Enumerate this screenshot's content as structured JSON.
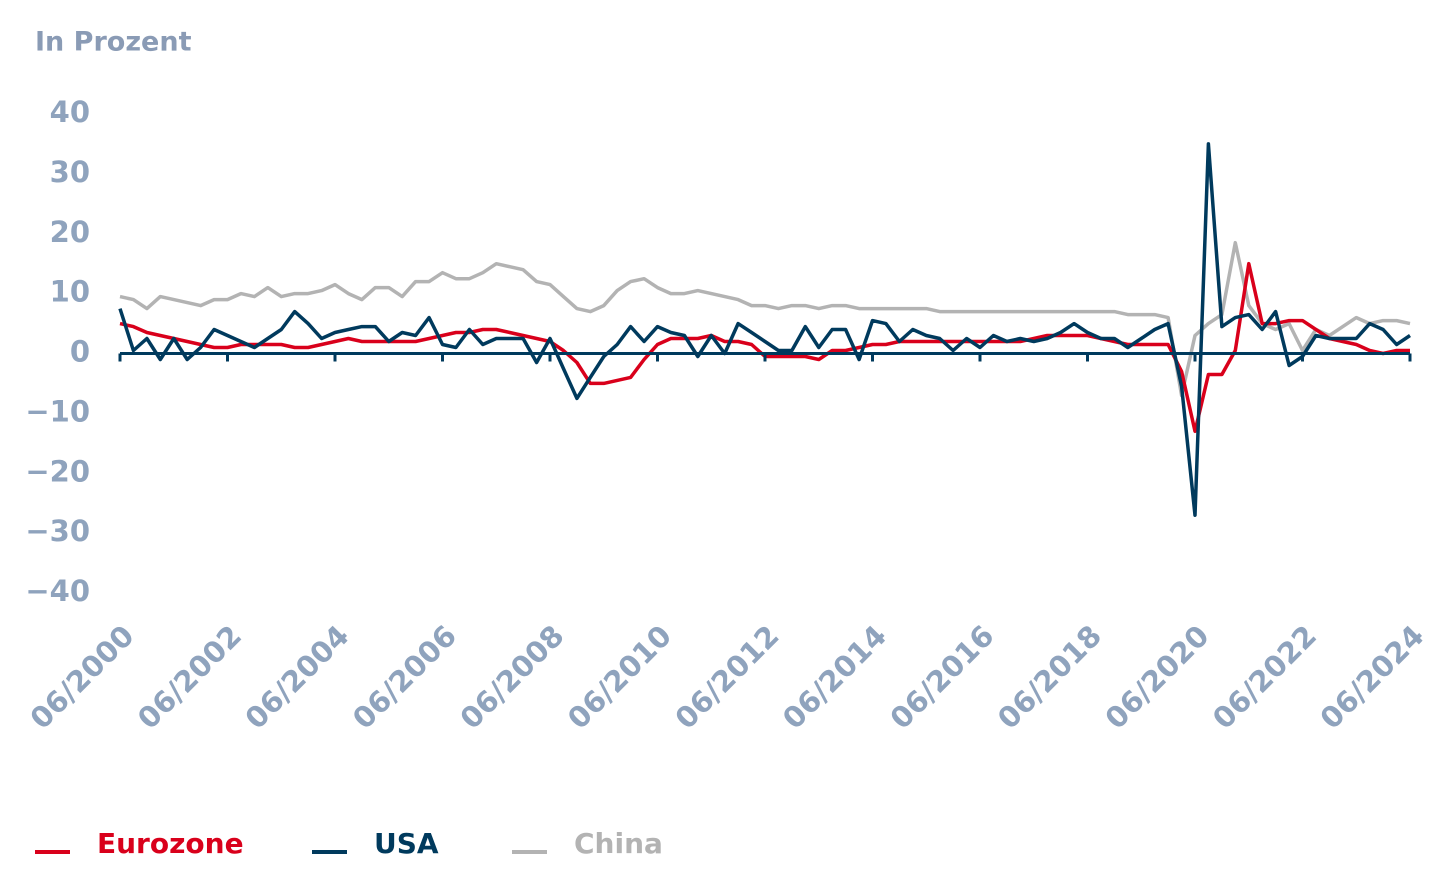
{
  "chart_data": {
    "type": "line",
    "y_axis_label": "In Prozent",
    "categories": [
      "06/2000",
      null,
      null,
      null,
      null,
      null,
      null,
      null,
      "06/2002",
      null,
      null,
      null,
      null,
      null,
      null,
      null,
      "06/2004",
      null,
      null,
      null,
      null,
      null,
      null,
      null,
      "06/2006",
      null,
      null,
      null,
      null,
      null,
      null,
      null,
      "06/2008",
      null,
      null,
      null,
      null,
      null,
      null,
      null,
      "06/2010",
      null,
      null,
      null,
      null,
      null,
      null,
      null,
      "06/2012",
      null,
      null,
      null,
      null,
      null,
      null,
      null,
      "06/2014",
      null,
      null,
      null,
      null,
      null,
      null,
      null,
      "06/2016",
      null,
      null,
      null,
      null,
      null,
      null,
      null,
      "06/2018",
      null,
      null,
      null,
      null,
      null,
      null,
      null,
      "06/2020",
      null,
      null,
      null,
      null,
      null,
      null,
      null,
      "06/2022",
      null,
      null,
      null,
      null,
      null,
      null,
      null,
      "06/2024"
    ],
    "series": [
      {
        "name": "Eurozone",
        "color": "#d9001b",
        "values": [
          5,
          4.5,
          3.5,
          3,
          2.5,
          2,
          1.5,
          1,
          1,
          1.5,
          1.5,
          1.5,
          1.5,
          1,
          1,
          1.5,
          2,
          2.5,
          2,
          2,
          2,
          2,
          2,
          2.5,
          3,
          3.5,
          3.5,
          4,
          4,
          3.5,
          3,
          2.5,
          2,
          0.5,
          -1.5,
          -5,
          -5,
          -4.5,
          -4,
          -1,
          1.5,
          2.5,
          2.5,
          2.5,
          3,
          2,
          2,
          1.5,
          -0.5,
          -0.5,
          -0.5,
          -0.5,
          -1,
          0.5,
          0.5,
          1,
          1.5,
          1.5,
          2,
          2,
          2,
          2,
          2,
          2,
          2,
          2,
          2,
          2,
          2.5,
          3,
          3,
          3,
          3,
          2.5,
          2,
          1.5,
          1.5,
          1.5,
          1.5,
          -3,
          -13,
          -3.5,
          -3.5,
          0.5,
          15,
          5,
          5,
          5.5,
          5.5,
          4,
          2.5,
          2,
          1.5,
          0.5,
          0,
          0.5,
          0.5
        ]
      },
      {
        "name": "USA",
        "color": "#003a5d",
        "values": [
          7.5,
          0.5,
          2.5,
          -1,
          2.5,
          -1,
          1,
          4,
          3,
          2,
          1,
          2.5,
          4,
          7,
          5,
          2.5,
          3.5,
          4,
          4.5,
          4.5,
          2,
          3.5,
          3,
          6,
          1.5,
          1,
          4,
          1.5,
          2.5,
          2.5,
          2.5,
          -1.5,
          2.5,
          -2.5,
          -7.5,
          -4,
          -0.5,
          1.5,
          4.5,
          2,
          4.5,
          3.5,
          3,
          -0.5,
          3,
          0,
          5,
          3.5,
          2,
          0.5,
          0.5,
          4.5,
          1,
          4,
          4,
          -1,
          5.5,
          5,
          2,
          4,
          3,
          2.5,
          0.5,
          2.5,
          1,
          3,
          2,
          2.5,
          2,
          2.5,
          3.5,
          5,
          3.5,
          2.5,
          2.5,
          1,
          2.5,
          4,
          5,
          -5.5,
          -27,
          35,
          4.5,
          6,
          6.5,
          4,
          7,
          -2,
          -0.5,
          3,
          2.5,
          2.5,
          2.5,
          5,
          4,
          1.5,
          3
        ]
      },
      {
        "name": "China",
        "color": "#b3b3b3",
        "values": [
          9.5,
          9,
          7.5,
          9.5,
          9,
          8.5,
          8,
          9,
          9,
          10,
          9.5,
          11,
          9.5,
          10,
          10,
          10.5,
          11.5,
          10,
          9,
          11,
          11,
          9.5,
          12,
          12,
          13.5,
          12.5,
          12.5,
          13.5,
          15,
          14.5,
          14,
          12,
          11.5,
          9.5,
          7.5,
          7,
          8,
          10.5,
          12,
          12.5,
          11,
          10,
          10,
          10.5,
          10,
          9.5,
          9,
          8,
          8,
          7.5,
          8,
          8,
          7.5,
          8,
          8,
          7.5,
          7.5,
          7.5,
          7.5,
          7.5,
          7.5,
          7,
          7,
          7,
          7,
          7,
          7,
          7,
          7,
          7,
          7,
          7,
          7,
          7,
          7,
          6.5,
          6.5,
          6.5,
          6,
          -7,
          3,
          5,
          6.5,
          18.5,
          8,
          5,
          4,
          5,
          0.5,
          4,
          3,
          4.5,
          6,
          5,
          5.5,
          5.5,
          5
        ]
      }
    ],
    "ylim": [
      -40,
      40
    ],
    "yticks": [
      {
        "value": -40,
        "label": "−40"
      },
      {
        "value": -30,
        "label": "−30"
      },
      {
        "value": -20,
        "label": "−20"
      },
      {
        "value": -10,
        "label": "−10"
      },
      0,
      10,
      20,
      30,
      40
    ],
    "grid": false
  }
}
